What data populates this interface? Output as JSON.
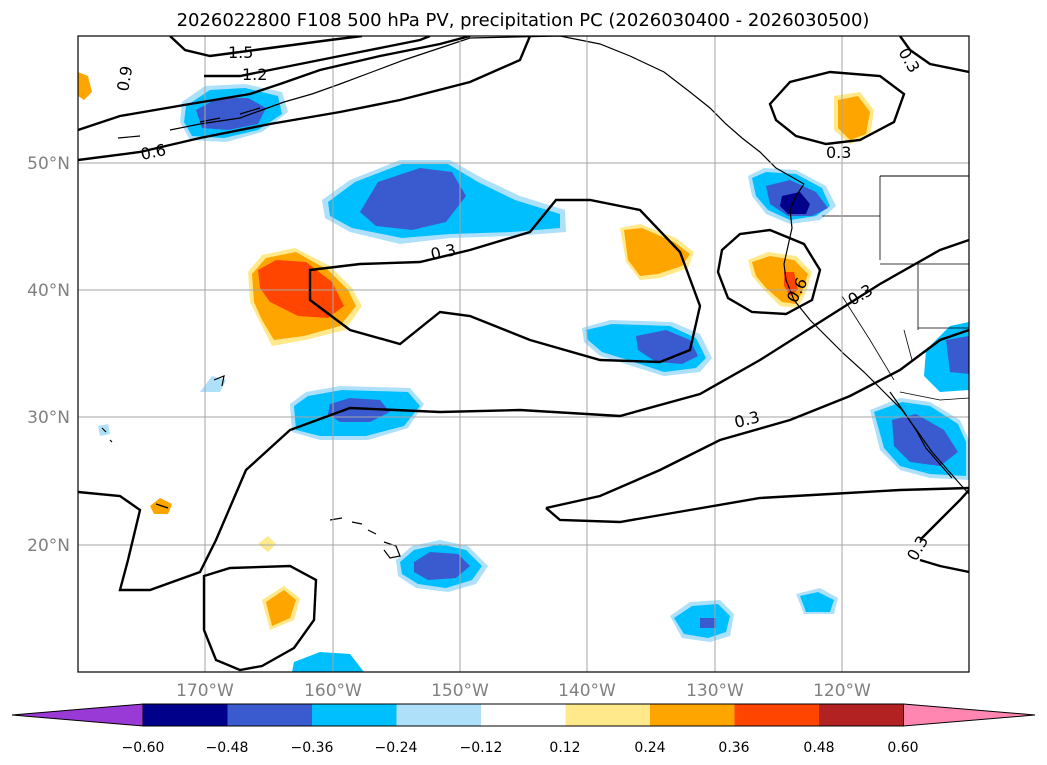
{
  "title": "2026022800 F108 500 hPa PV, precipitation PC (2026030400 - 2026030500)",
  "map": {
    "lat_labels": [
      "50°N",
      "40°N",
      "30°N",
      "20°N"
    ],
    "lon_labels": [
      "170°W",
      "160°W",
      "150°W",
      "140°W",
      "130°W",
      "120°W"
    ],
    "lat_range": [
      10,
      60
    ],
    "lon_range": [
      -180,
      -110
    ],
    "gridlines": true
  },
  "pv_contour_labels": [
    "1.5",
    "1.2",
    "0.9",
    "0.6",
    "0.3",
    "0.3",
    "0.3",
    "0.3",
    "0.6",
    "0.3",
    "0.3",
    "0.3"
  ],
  "colorbar": {
    "ticks": [
      "−0.60",
      "−0.48",
      "−0.36",
      "−0.24",
      "−0.12",
      "0.12",
      "0.24",
      "0.36",
      "0.48",
      "0.60"
    ],
    "colors": [
      "#9a3ad6",
      "#00008b",
      "#3a5bd0",
      "#00bfff",
      "#aee0fa",
      "#ffffff",
      "#ffe98a",
      "#ffa500",
      "#ff4500",
      "#b22222",
      "#ff86b0"
    ]
  },
  "colors": {
    "neg_dark": "#00008b",
    "neg_mid": "#3a5bd0",
    "neg_light": "#00bfff",
    "neg_pale": "#aee0fa",
    "pos_pale": "#ffe98a",
    "pos_mid": "#ffa500",
    "pos_strong": "#ff4500"
  }
}
